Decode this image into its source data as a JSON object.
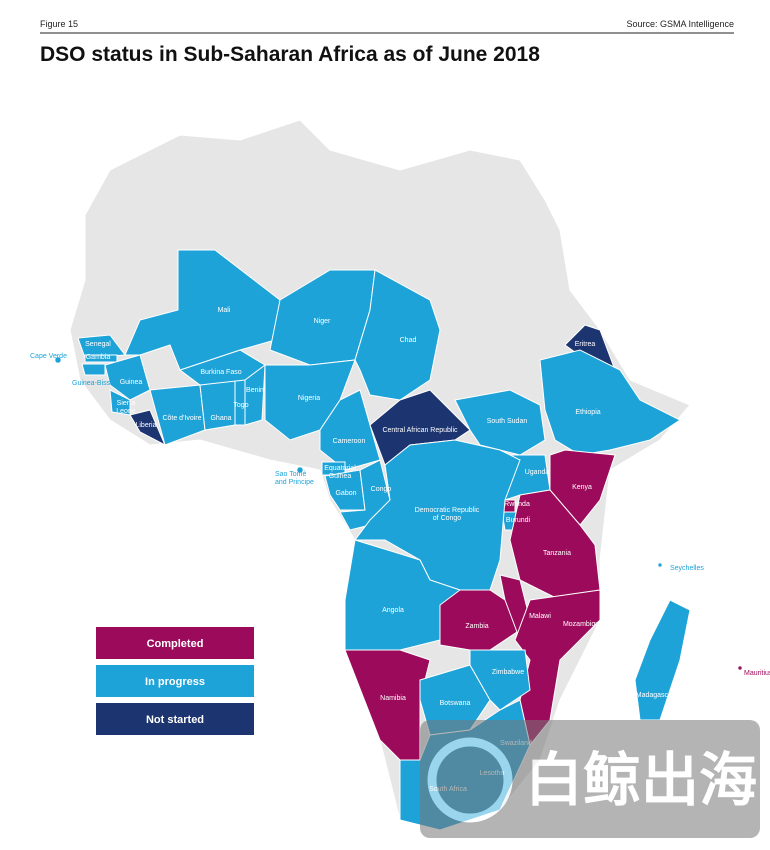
{
  "header": {
    "figure": "Figure 15",
    "source": "Source: GSMA Intelligence",
    "title": "DSO status in Sub-Saharan Africa as of June 2018"
  },
  "legend": [
    {
      "label": "Completed",
      "color": "#9c0b5b"
    },
    {
      "label": "In progress",
      "color": "#1ea3d8"
    },
    {
      "label": "Not started",
      "color": "#1c3470"
    }
  ],
  "countries": [
    {
      "label": "Cape Verde",
      "status": 1
    },
    {
      "label": "Senegal",
      "status": 1
    },
    {
      "label": "Gambia",
      "status": 1
    },
    {
      "label": "Guinea-Bissau",
      "status": 1
    },
    {
      "label": "Guinea",
      "status": 1
    },
    {
      "label": [
        "Sierra",
        "Leone"
      ],
      "status": 1
    },
    {
      "label": "Liberia",
      "status": 2
    },
    {
      "label": "Côte d'Ivoire",
      "status": 1
    },
    {
      "label": "Ghana",
      "status": 1
    },
    {
      "label": "Togo",
      "status": 1
    },
    {
      "label": "Benin",
      "status": 1
    },
    {
      "label": "Burkina Faso",
      "status": 1
    },
    {
      "label": "Mali",
      "status": 1
    },
    {
      "label": "Niger",
      "status": 1
    },
    {
      "label": "Nigeria",
      "status": 1
    },
    {
      "label": "Chad",
      "status": 1
    },
    {
      "label": "Cameroon",
      "status": 1
    },
    {
      "label": [
        "Equatorial",
        "Guinea"
      ],
      "status": 1
    },
    {
      "label": "Gabon",
      "status": 1
    },
    {
      "label": "Congo",
      "status": 1
    },
    {
      "label": [
        "Sao Tomé",
        "and Principe"
      ],
      "status": 1
    },
    {
      "label": "Central African Republic",
      "status": 2
    },
    {
      "label": "South Sudan",
      "status": 1
    },
    {
      "label": "Eritrea",
      "status": 2
    },
    {
      "label": "Ethiopia",
      "status": 1
    },
    {
      "label": "Uganda",
      "status": 1
    },
    {
      "label": "Kenya",
      "status": 0
    },
    {
      "label": "Rwanda",
      "status": 0
    },
    {
      "label": "Burundi",
      "status": 1
    },
    {
      "label": [
        "Democratic Republic",
        "of Congo"
      ],
      "status": 1
    },
    {
      "label": "Tanzania",
      "status": 0
    },
    {
      "label": "Seychelles",
      "status": 1
    },
    {
      "label": "Angola",
      "status": 1
    },
    {
      "label": "Zambia",
      "status": 0
    },
    {
      "label": "Malawi",
      "status": 0
    },
    {
      "label": "Mozambique",
      "status": 0
    },
    {
      "label": "Namibia",
      "status": 0
    },
    {
      "label": "Botswana",
      "status": 1
    },
    {
      "label": "Zimbabwe",
      "status": 1
    },
    {
      "label": "Madagascar",
      "status": 1
    },
    {
      "label": "Mauritius",
      "status": 0
    },
    {
      "label": "Swaziland",
      "status": 1
    },
    {
      "label": "Lesotho",
      "status": 1
    },
    {
      "label": "South Africa",
      "status": 1
    }
  ],
  "watermark": "白鲸出海"
}
